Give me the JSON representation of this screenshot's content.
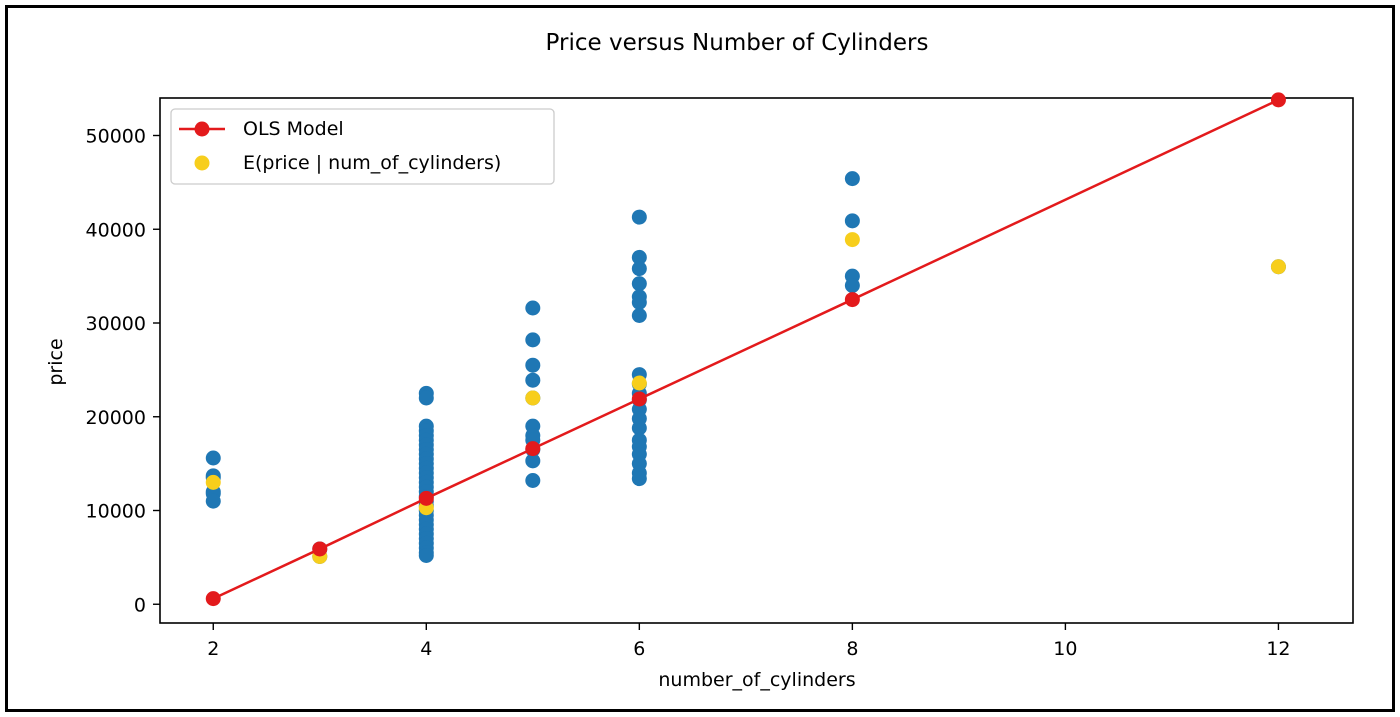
{
  "chart_data": {
    "type": "scatter",
    "title": "Price versus Number of Cylinders",
    "xlabel": "number_of_cylinders",
    "ylabel": "price",
    "xlim": [
      1.5,
      12.7
    ],
    "ylim": [
      -2000,
      54000
    ],
    "xticks": [
      2,
      4,
      6,
      8,
      10,
      12
    ],
    "yticks": [
      0,
      10000,
      20000,
      30000,
      40000,
      50000
    ],
    "grid": false,
    "legend_position": "top-left",
    "colors": {
      "observations": "#1f77b4",
      "model": "#e31a1c",
      "expected": "#f7ce1c"
    },
    "series": [
      {
        "name": "",
        "kind": "scatter",
        "color": "#1f77b4",
        "points": [
          [
            2,
            15600
          ],
          [
            2,
            13700
          ],
          [
            2,
            13500
          ],
          [
            2,
            12000
          ],
          [
            2,
            11800
          ],
          [
            2,
            11000
          ],
          [
            3,
            5900
          ],
          [
            3,
            5100
          ],
          [
            4,
            22500
          ],
          [
            4,
            22000
          ],
          [
            4,
            19000
          ],
          [
            4,
            18500
          ],
          [
            4,
            18000
          ],
          [
            4,
            17500
          ],
          [
            4,
            17000
          ],
          [
            4,
            16500
          ],
          [
            4,
            16000
          ],
          [
            4,
            15500
          ],
          [
            4,
            15000
          ],
          [
            4,
            14500
          ],
          [
            4,
            14000
          ],
          [
            4,
            13500
          ],
          [
            4,
            13000
          ],
          [
            4,
            12500
          ],
          [
            4,
            12000
          ],
          [
            4,
            11500
          ],
          [
            4,
            11000
          ],
          [
            4,
            10500
          ],
          [
            4,
            10000
          ],
          [
            4,
            9500
          ],
          [
            4,
            9000
          ],
          [
            4,
            8500
          ],
          [
            4,
            8000
          ],
          [
            4,
            7500
          ],
          [
            4,
            7000
          ],
          [
            4,
            6500
          ],
          [
            4,
            6000
          ],
          [
            4,
            5500
          ],
          [
            4,
            5200
          ],
          [
            5,
            31600
          ],
          [
            5,
            28200
          ],
          [
            5,
            25500
          ],
          [
            5,
            23900
          ],
          [
            5,
            22000
          ],
          [
            5,
            19000
          ],
          [
            5,
            18000
          ],
          [
            5,
            17500
          ],
          [
            5,
            16500
          ],
          [
            5,
            15300
          ],
          [
            5,
            13200
          ],
          [
            6,
            41300
          ],
          [
            6,
            37000
          ],
          [
            6,
            35800
          ],
          [
            6,
            34200
          ],
          [
            6,
            32800
          ],
          [
            6,
            32200
          ],
          [
            6,
            30800
          ],
          [
            6,
            24500
          ],
          [
            6,
            23500
          ],
          [
            6,
            22500
          ],
          [
            6,
            21800
          ],
          [
            6,
            20800
          ],
          [
            6,
            19800
          ],
          [
            6,
            18800
          ],
          [
            6,
            17500
          ],
          [
            6,
            16800
          ],
          [
            6,
            16000
          ],
          [
            6,
            15000
          ],
          [
            6,
            14000
          ],
          [
            6,
            13400
          ],
          [
            8,
            45400
          ],
          [
            8,
            40900
          ],
          [
            8,
            35000
          ],
          [
            8,
            34000
          ],
          [
            12,
            36000
          ]
        ]
      },
      {
        "name": "OLS Model",
        "kind": "line",
        "color": "#e31a1c",
        "points": [
          [
            2,
            600
          ],
          [
            3,
            5900
          ],
          [
            4,
            11300
          ],
          [
            5,
            16600
          ],
          [
            6,
            21900
          ],
          [
            8,
            32500
          ],
          [
            12,
            53800
          ]
        ]
      },
      {
        "name": "E(price | num_of_cylinders)",
        "kind": "scatter",
        "color": "#f7ce1c",
        "points": [
          [
            2,
            13000
          ],
          [
            3,
            5100
          ],
          [
            4,
            10300
          ],
          [
            5,
            22000
          ],
          [
            6,
            23600
          ],
          [
            8,
            38900
          ],
          [
            12,
            36000
          ]
        ]
      }
    ]
  }
}
